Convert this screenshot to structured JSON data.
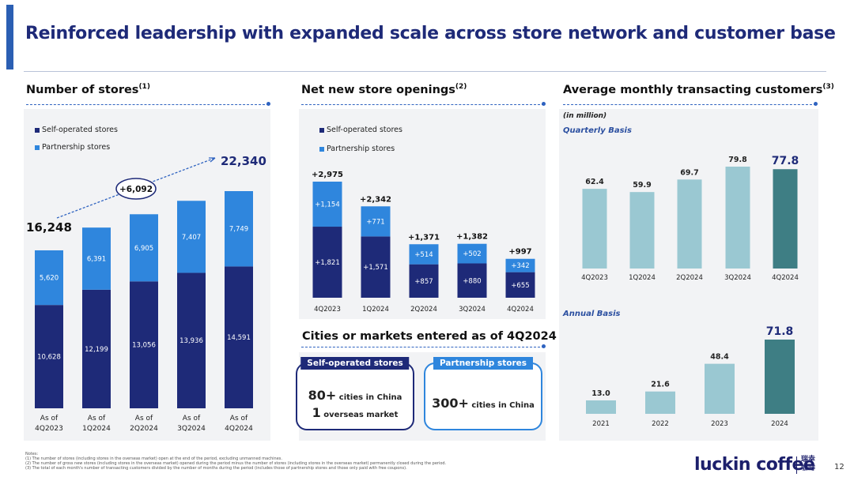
{
  "title": "Reinforced leadership with expanded scale across store network and customer base",
  "colors": {
    "self": "#1e2a78",
    "partner": "#2f86dd",
    "light_teal": "#9ac8d2",
    "dark_teal": "#3e7e84",
    "title": "#1e2a78"
  },
  "stores_section": {
    "title": "Number of stores",
    "note": "(1)"
  },
  "openings_section": {
    "title": "Net new store openings",
    "note": "(2)"
  },
  "customers_section": {
    "title": "Average monthly transacting customers",
    "note": "(3)",
    "unit": "(in million)",
    "quarterly_label": "Quarterly Basis",
    "annual_label": "Annual Basis"
  },
  "legend": {
    "self": "Self-operated stores",
    "partner": "Partnership stores"
  },
  "cities_section": {
    "title": "Cities or markets entered as of 4Q2024",
    "self": {
      "header": "Self-operated stores",
      "line1_num": "80+",
      "line1_text": "cities in China",
      "line2_num": "1",
      "line2_text": "overseas market"
    },
    "partner": {
      "header": "Partnership stores",
      "line1_num": "300+",
      "line1_text": "cities in China"
    }
  },
  "chart_data": [
    {
      "type": "bar",
      "title": "Number of stores",
      "categories": [
        [
          "As of",
          "4Q2023"
        ],
        [
          "As of",
          "1Q2024"
        ],
        [
          "As of",
          "2Q2024"
        ],
        [
          "As of",
          "3Q2024"
        ],
        [
          "As of",
          "4Q2024"
        ]
      ],
      "series": [
        {
          "name": "Self-operated stores",
          "values": [
            10628,
            12199,
            13056,
            13936,
            14591
          ],
          "labels": [
            "10,628",
            "12,199",
            "13,056",
            "13,936",
            "14,591"
          ]
        },
        {
          "name": "Partnership stores",
          "values": [
            5620,
            6391,
            6905,
            7407,
            7749
          ],
          "labels": [
            "5,620",
            "6,391",
            "6,905",
            "7,407",
            "7,749"
          ]
        }
      ],
      "start_total": "16,248",
      "end_total": "22,340",
      "growth": "+6,092",
      "stacked": true
    },
    {
      "type": "bar",
      "title": "Net new store openings",
      "categories": [
        "4Q2023",
        "1Q2024",
        "2Q2024",
        "3Q2024",
        "4Q2024"
      ],
      "series": [
        {
          "name": "Self-operated stores",
          "values": [
            1821,
            1571,
            857,
            880,
            655
          ],
          "labels": [
            "+1,821",
            "+1,571",
            "+857",
            "+880",
            "+655"
          ]
        },
        {
          "name": "Partnership stores",
          "values": [
            1154,
            771,
            514,
            502,
            342
          ],
          "labels": [
            "+1,154",
            "+771",
            "+514",
            "+502",
            "+342"
          ]
        }
      ],
      "totals": [
        "+2,975",
        "+2,342",
        "+1,371",
        "+1,382",
        "+997"
      ],
      "stacked": true
    },
    {
      "type": "bar",
      "title": "Quarterly Basis",
      "categories": [
        "4Q2023",
        "1Q2024",
        "2Q2024",
        "3Q2024",
        "4Q2024"
      ],
      "values": [
        62.4,
        59.9,
        69.7,
        79.8,
        77.8
      ],
      "labels": [
        "62.4",
        "59.9",
        "69.7",
        "79.8",
        "77.8"
      ]
    },
    {
      "type": "bar",
      "title": "Annual Basis",
      "categories": [
        "2021",
        "2022",
        "2023",
        "2024"
      ],
      "values": [
        13.0,
        21.6,
        48.4,
        71.8
      ],
      "labels": [
        "13.0",
        "21.6",
        "48.4",
        "71.8"
      ]
    }
  ],
  "notes": [
    "Notes:",
    "(1)   The number of stores (including stores in the overseas market) open at the end of the period, excluding unmanned machines.",
    "(2)   The number of gross new stores (including stores in the overseas market) opened during the period minus the number of stores (including stores in the overseas market) permanently closed during the period.",
    "(3)   The total of each month's number of transacting customers divided by the number of months during the period (includes those of partnership stores and those only paid with free coupons)."
  ],
  "logo": {
    "text": "luckin coffee",
    "cn1": "瑞幸",
    "cn2": "咖啡"
  },
  "page_number": "12"
}
